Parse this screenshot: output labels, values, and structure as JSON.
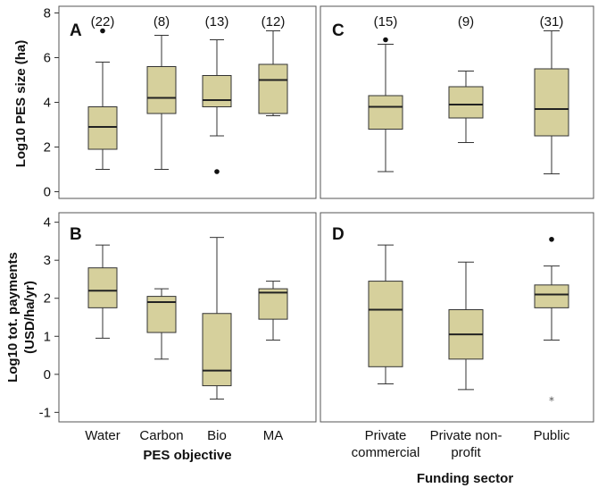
{
  "colors": {
    "box_fill": "#d6d09c",
    "stroke": "#333333"
  },
  "figure": {
    "ylabel_top": "Log10 PES size (ha)",
    "ylabel_bottom_line1": "Log10 tot. payments",
    "ylabel_bottom_line2": "(USD/ha/yr)",
    "xlabel_left": "PES objective",
    "xlabel_right": "Funding sector"
  },
  "chart_data": [
    {
      "type": "box",
      "panel": "A",
      "row": "top",
      "col": "left",
      "ylim": [
        -0.3,
        8.3
      ],
      "yticks": [
        0,
        2,
        4,
        6,
        8
      ],
      "categories": [
        "Water",
        "Carbon",
        "Bio",
        "MA"
      ],
      "counts": [
        "(22)",
        "(8)",
        "(13)",
        "(12)"
      ],
      "boxes": [
        {
          "min": 1.0,
          "q1": 1.9,
          "median": 2.9,
          "q3": 3.8,
          "max": 5.8,
          "outliers": [
            7.2
          ],
          "outlier_style": "dot"
        },
        {
          "min": 1.0,
          "q1": 3.5,
          "median": 4.2,
          "q3": 5.6,
          "max": 7.0,
          "outliers": []
        },
        {
          "min": 2.5,
          "q1": 3.8,
          "median": 4.1,
          "q3": 5.2,
          "max": 6.8,
          "outliers": [
            0.9
          ],
          "outlier_style": "dot"
        },
        {
          "min": 3.4,
          "q1": 3.5,
          "median": 5.0,
          "q3": 5.7,
          "max": 7.2,
          "outliers": []
        }
      ]
    },
    {
      "type": "box",
      "panel": "C",
      "row": "top",
      "col": "right",
      "ylim": [
        -0.3,
        8.3
      ],
      "yticks": [],
      "categories": [
        "Private commercial",
        "Private non-profit",
        "Public"
      ],
      "counts": [
        "(15)",
        "(9)",
        "(31)"
      ],
      "boxes": [
        {
          "min": 0.9,
          "q1": 2.8,
          "median": 3.8,
          "q3": 4.3,
          "max": 6.6,
          "outliers": [
            6.8
          ],
          "outlier_style": "dot"
        },
        {
          "min": 2.2,
          "q1": 3.3,
          "median": 3.9,
          "q3": 4.7,
          "max": 5.4,
          "outliers": []
        },
        {
          "min": 0.8,
          "q1": 2.5,
          "median": 3.7,
          "q3": 5.5,
          "max": 7.2,
          "outliers": []
        }
      ]
    },
    {
      "type": "box",
      "panel": "B",
      "row": "bottom",
      "col": "left",
      "ylim": [
        -1.25,
        4.25
      ],
      "yticks": [
        -1,
        0,
        1,
        2,
        3,
        4
      ],
      "categories": [
        "Water",
        "Carbon",
        "Bio",
        "MA"
      ],
      "boxes": [
        {
          "min": 0.95,
          "q1": 1.75,
          "median": 2.2,
          "q3": 2.8,
          "max": 3.4,
          "outliers": []
        },
        {
          "min": 0.4,
          "q1": 1.1,
          "median": 1.9,
          "q3": 2.05,
          "max": 2.25,
          "outliers": []
        },
        {
          "min": -0.65,
          "q1": -0.3,
          "median": 0.1,
          "q3": 1.6,
          "max": 3.6,
          "outliers": []
        },
        {
          "min": 0.9,
          "q1": 1.45,
          "median": 2.15,
          "q3": 2.25,
          "max": 2.45,
          "outliers": []
        }
      ]
    },
    {
      "type": "box",
      "panel": "D",
      "row": "bottom",
      "col": "right",
      "ylim": [
        -1.25,
        4.25
      ],
      "yticks": [],
      "categories": [
        "Private commercial",
        "Private non-profit",
        "Public"
      ],
      "boxes": [
        {
          "min": -0.25,
          "q1": 0.2,
          "median": 1.7,
          "q3": 2.45,
          "max": 3.4,
          "outliers": []
        },
        {
          "min": -0.4,
          "q1": 0.4,
          "median": 1.05,
          "q3": 1.7,
          "max": 2.95,
          "outliers": []
        },
        {
          "min": 0.9,
          "q1": 1.75,
          "median": 2.1,
          "q3": 2.35,
          "max": 2.85,
          "outliers": [
            3.55,
            -0.65
          ],
          "outlier_style": [
            "dot",
            "star"
          ]
        }
      ]
    }
  ],
  "x_labels": {
    "left": [
      "Water",
      "Carbon",
      "Bio",
      "MA"
    ],
    "right_line1": [
      "Private",
      "Private non-",
      "Public"
    ],
    "right_line2": [
      "commercial",
      "profit",
      ""
    ]
  }
}
